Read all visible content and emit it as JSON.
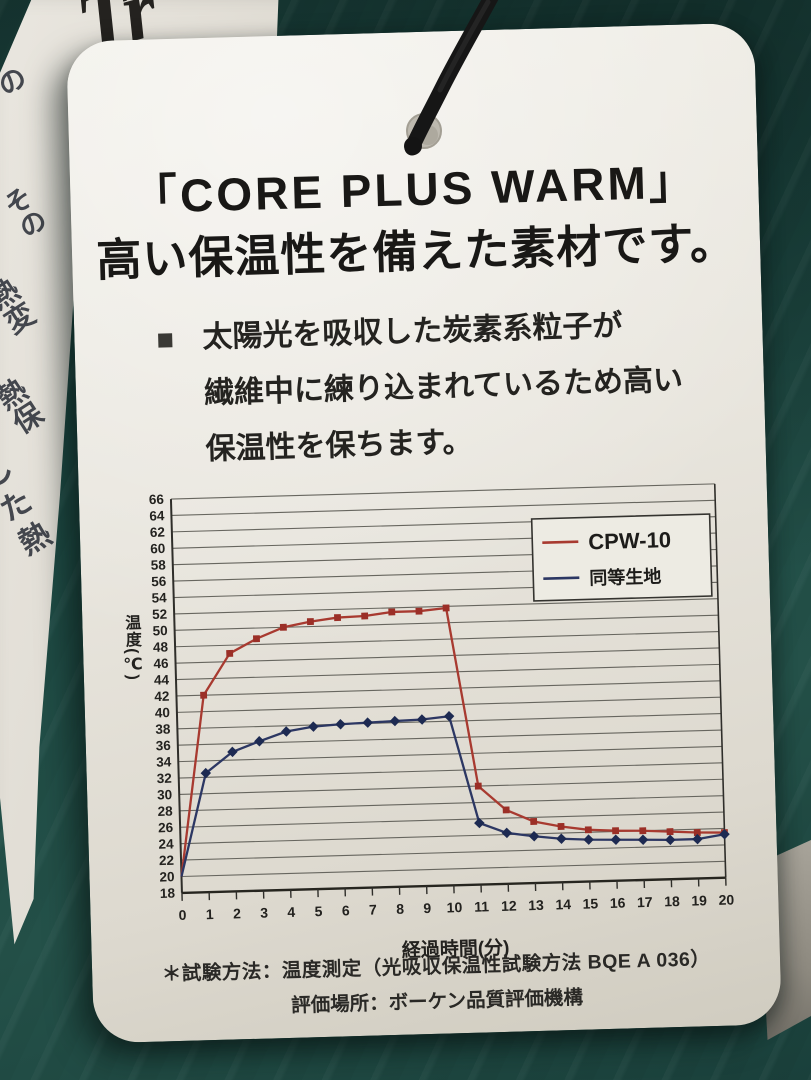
{
  "tag": {
    "title_line1": "「CORE PLUS WARM」",
    "title_line2": "高い保温性を備えた素材です。",
    "bullet_marker": "■",
    "bullet_lines": [
      "太陽光を吸収した炭素系粒子が",
      "繊維中に練り込まれているため高い",
      "保温性を保ちます。"
    ],
    "footer_line1": "＊試験方法：温度測定（光吸収保温性試験方法 BQE A 036）",
    "footer_line2": "評価場所：ボーケン品質評価機構"
  },
  "background_tag": {
    "partial_logo": "Tr",
    "fragments": [
      "の",
      "その",
      "熱変",
      "熱保",
      "した熱"
    ]
  },
  "chart_data": {
    "type": "line",
    "title": "",
    "xlabel": "経過時間(分)",
    "ylabel": "温度(℃)",
    "ylim": [
      18,
      66
    ],
    "xlim": [
      0,
      20
    ],
    "grid": "horizontal",
    "legend_position": "top-right",
    "x": [
      0,
      1,
      2,
      3,
      4,
      5,
      6,
      7,
      8,
      9,
      10,
      11,
      12,
      13,
      14,
      15,
      16,
      17,
      18,
      19,
      20
    ],
    "x_ticks": [
      0,
      1,
      2,
      3,
      4,
      5,
      6,
      7,
      8,
      9,
      10,
      11,
      12,
      13,
      14,
      15,
      16,
      17,
      18,
      19,
      20
    ],
    "y_ticks": [
      18,
      20,
      22,
      24,
      26,
      28,
      30,
      32,
      34,
      36,
      38,
      40,
      42,
      44,
      46,
      48,
      50,
      52,
      54,
      56,
      58,
      60,
      62,
      64,
      66
    ],
    "series": [
      {
        "name": "CPW-10",
        "color": "#a83a30",
        "marker": "square",
        "marker_color": "#9b2f27",
        "values": [
          20,
          42,
          47,
          48.7,
          50,
          50.6,
          51,
          51.1,
          51.5,
          51.5,
          51.8,
          30,
          27,
          25.5,
          24.8,
          24.3,
          24.1,
          24,
          23.8,
          23.6,
          23.5
        ]
      },
      {
        "name": "同等生地",
        "color": "#2c3763",
        "marker": "diamond",
        "marker_color": "#1d2a52",
        "values": [
          20,
          32.5,
          35,
          36.2,
          37.3,
          37.8,
          38,
          38.1,
          38.2,
          38.3,
          38.6,
          25.5,
          24.2,
          23.7,
          23.3,
          23.1,
          23,
          22.9,
          22.8,
          22.8,
          23.3
        ]
      }
    ]
  },
  "colors": {
    "fabric_teal": "#1d4a44",
    "paper": "#e8e5dd",
    "ink": "#191816",
    "series_red": "#a83a30",
    "series_navy": "#2c3763",
    "grid": "#67665f"
  }
}
